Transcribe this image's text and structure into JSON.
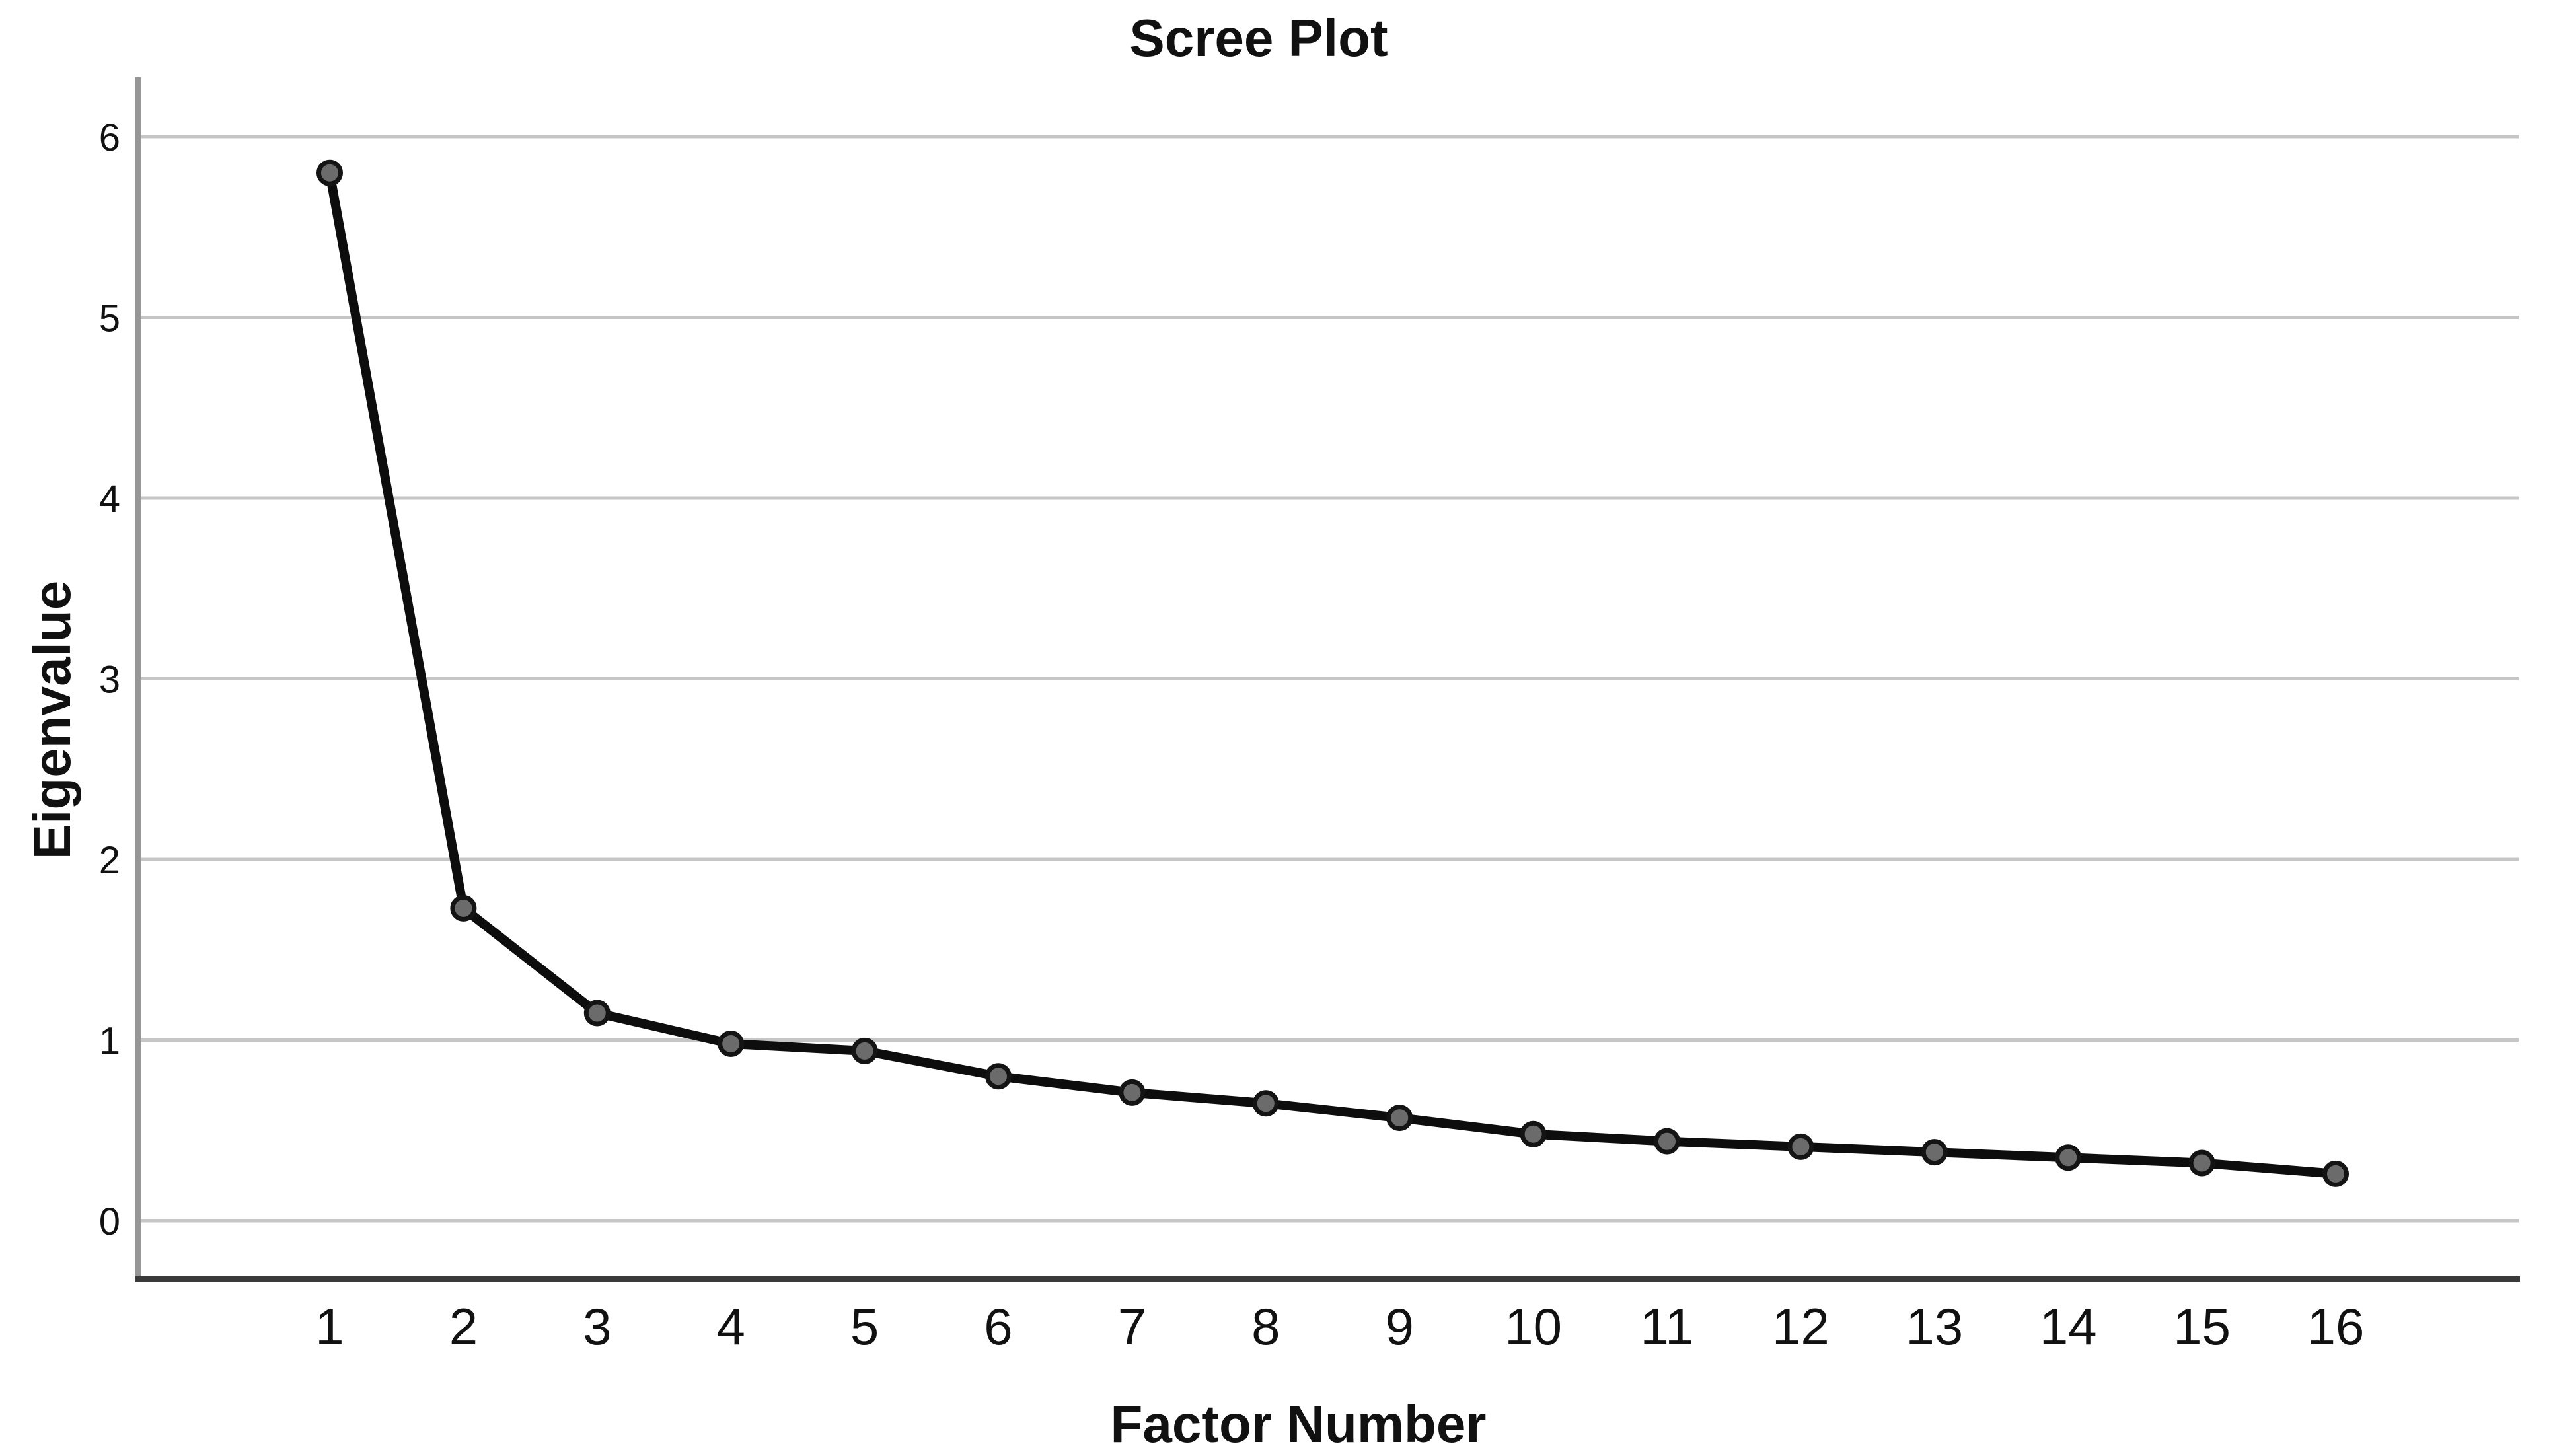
{
  "chart": {
    "title": "Scree Plot",
    "xlabel": "Factor Number",
    "ylabel": "Eigenvalue"
  },
  "chart_data": {
    "type": "line",
    "title": "Scree Plot",
    "xlabel": "Factor Number",
    "ylabel": "Eigenvalue",
    "categories": [
      1,
      2,
      3,
      4,
      5,
      6,
      7,
      8,
      9,
      10,
      11,
      12,
      13,
      14,
      15,
      16
    ],
    "series": [
      {
        "name": "Eigenvalue",
        "values": [
          5.8,
          1.73,
          1.15,
          0.98,
          0.94,
          0.8,
          0.71,
          0.65,
          0.57,
          0.48,
          0.44,
          0.41,
          0.38,
          0.35,
          0.32,
          0.26
        ]
      }
    ],
    "ylim": [
      0,
      6
    ],
    "yticks": [
      0,
      1,
      2,
      3,
      4,
      5,
      6
    ],
    "grid": "horizontal",
    "legend": "none",
    "marker": "circle",
    "colors": {
      "line": "#0d0d0d",
      "marker_fill": "#6b6b6b",
      "marker_stroke": "#141414",
      "gridline": "#c6c6c6",
      "y_axis": "#969696",
      "x_axis": "#3a3a3a",
      "text": "#111111"
    }
  }
}
